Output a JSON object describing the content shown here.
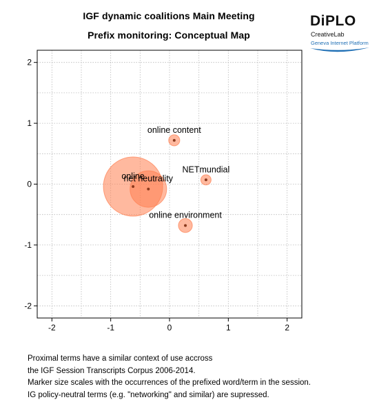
{
  "titles": {
    "line1": "IGF dynamic coalitions Main Meeting",
    "line2": "Prefix monitoring: Conceptual Map"
  },
  "logo": {
    "wordmark": "DiPLO",
    "line1": "CreativeLab",
    "line2": "Geneva Internet Platform",
    "colors": {
      "text": "#111111",
      "accent": "#1f6fb5"
    }
  },
  "chart_data": {
    "type": "scatter",
    "title": "",
    "xlabel": "",
    "ylabel": "",
    "xlim": [
      -2.25,
      2.25
    ],
    "ylim": [
      -2.2,
      2.2
    ],
    "xticks": [
      -2,
      -1,
      0,
      1,
      2
    ],
    "yticks": [
      -2,
      -1,
      0,
      1,
      2
    ],
    "grid": true,
    "grid_style": "dotted",
    "points": [
      {
        "label": "online",
        "x": -0.62,
        "y": -0.04,
        "size": 1.0
      },
      {
        "label": "net neutrality",
        "x": -0.36,
        "y": -0.08,
        "size": 0.38
      },
      {
        "label": "online content",
        "x": 0.08,
        "y": 0.72,
        "size": 0.035
      },
      {
        "label": "NETmundial",
        "x": 0.62,
        "y": 0.07,
        "size": 0.03
      },
      {
        "label": "online environment",
        "x": 0.27,
        "y": -0.68,
        "size": 0.055
      }
    ],
    "colors": {
      "bubble": "#ff7f50",
      "dot": "#8b3a1e"
    }
  },
  "footer": [
    "Proximal terms have a similar context of use accross",
    "the IGF Session Transcripts Corpus 2006-2014.",
    "Marker size scales with the occurrences of the prefixed word/term in the session.",
    "IG policy-neutral terms (e.g. \"networking\" and similar) are supressed."
  ]
}
